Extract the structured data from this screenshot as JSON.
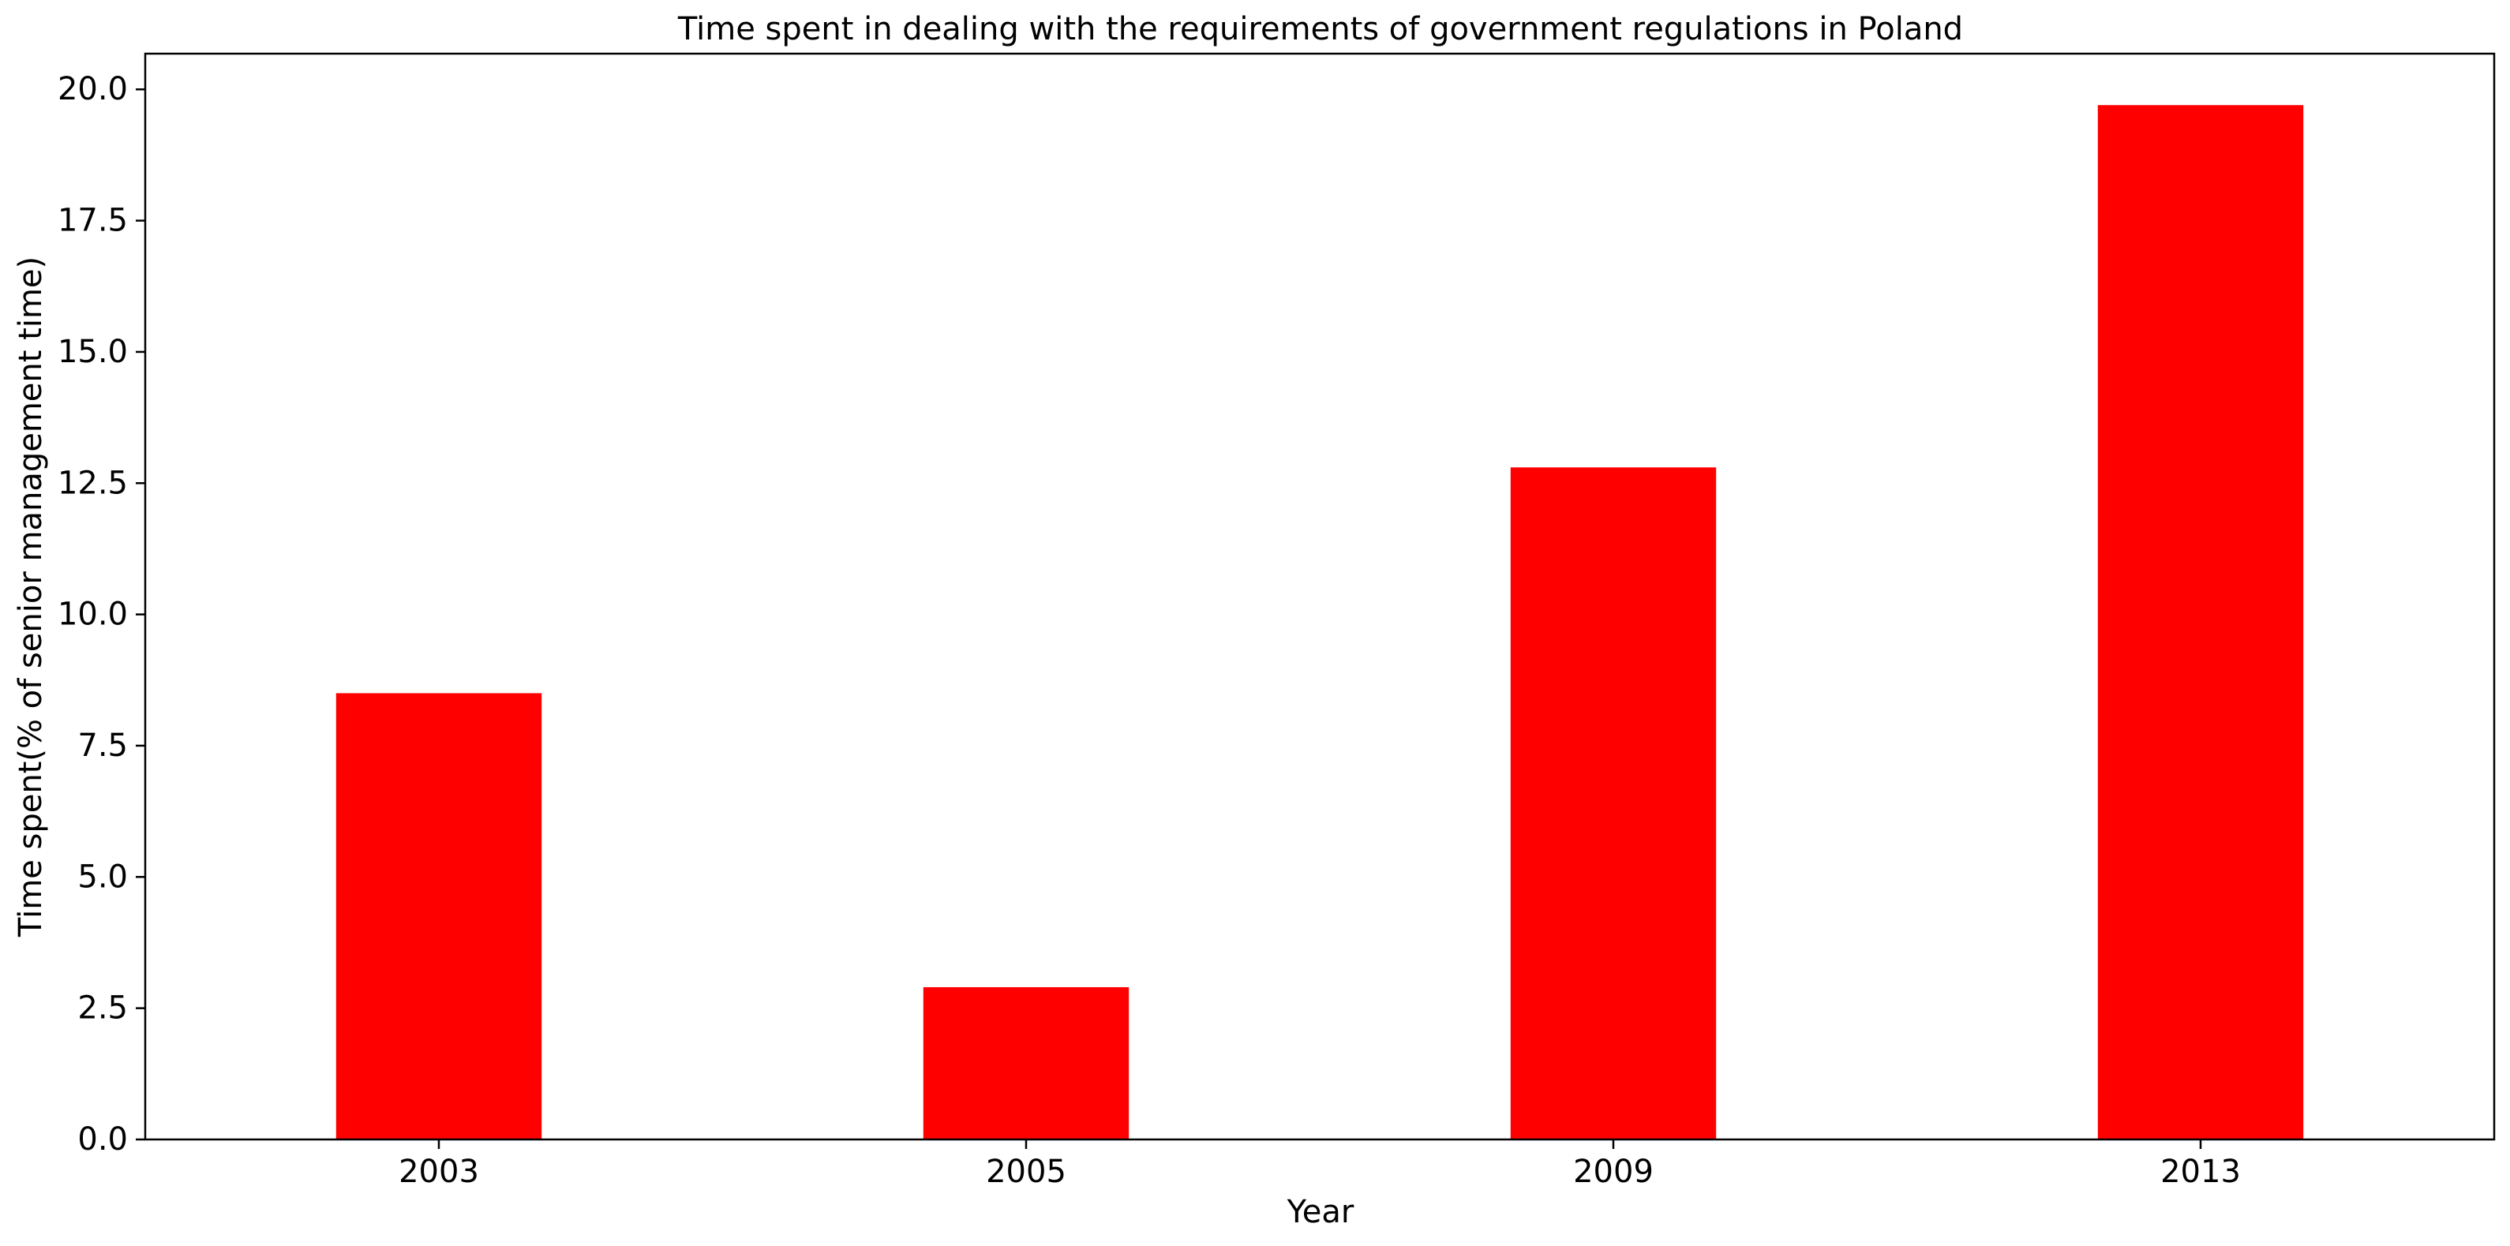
{
  "chart_data": {
    "type": "bar",
    "title": "Time spent in dealing with the requirements of government regulations in Poland",
    "xlabel": "Year",
    "ylabel": "Time spent(% of senior management time)",
    "categories": [
      "2003",
      "2005",
      "2009",
      "2013"
    ],
    "values": [
      8.5,
      2.9,
      12.8,
      19.7
    ],
    "ylim": [
      0,
      20.68
    ],
    "yticks": [
      0.0,
      2.5,
      5.0,
      7.5,
      10.0,
      12.5,
      15.0,
      17.5,
      20.0
    ],
    "ytick_labels": [
      "0.0",
      "2.5",
      "5.0",
      "7.5",
      "10.0",
      "12.5",
      "15.0",
      "17.5",
      "20.0"
    ],
    "bar_color": "#ff0000",
    "grid": false,
    "legend": "none"
  }
}
